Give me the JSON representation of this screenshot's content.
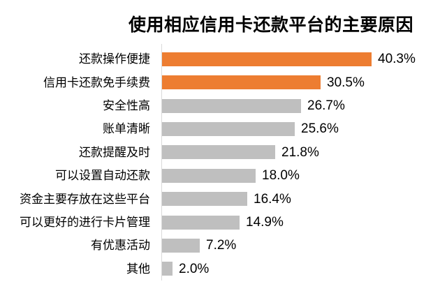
{
  "chart_data": {
    "type": "bar",
    "orientation": "horizontal",
    "title": "使用相应信用卡还款平台的主要原因",
    "categories": [
      "还款操作便捷",
      "信用卡还款免手续费",
      "安全性高",
      "账单清晰",
      "还款提醒及时",
      "可以设置自动还款",
      "资金主要存放在这些平台",
      "可以更好的进行卡片管理",
      "有优惠活动",
      "其他"
    ],
    "values": [
      40.3,
      30.5,
      26.7,
      25.6,
      21.8,
      18.0,
      16.4,
      14.9,
      7.2,
      2.0
    ],
    "value_labels": [
      "40.3%",
      "30.5%",
      "26.7%",
      "25.6%",
      "21.8%",
      "18.0%",
      "16.4%",
      "14.9%",
      "7.2%",
      "2.0%"
    ],
    "bar_colors": [
      "#ED7D31",
      "#ED7D31",
      "#BFBFBF",
      "#BFBFBF",
      "#BFBFBF",
      "#BFBFBF",
      "#BFBFBF",
      "#BFBFBF",
      "#BFBFBF",
      "#BFBFBF"
    ],
    "colors": {
      "accent_orange": "#ED7D31",
      "bar_gray": "#BFBFBF",
      "axis_line": "#D9D9D9",
      "text": "#000000",
      "background": "#FFFFFF"
    },
    "xlim": [
      0,
      41
    ],
    "grid": false,
    "legend": "none",
    "data_label_position": "outside-end"
  }
}
